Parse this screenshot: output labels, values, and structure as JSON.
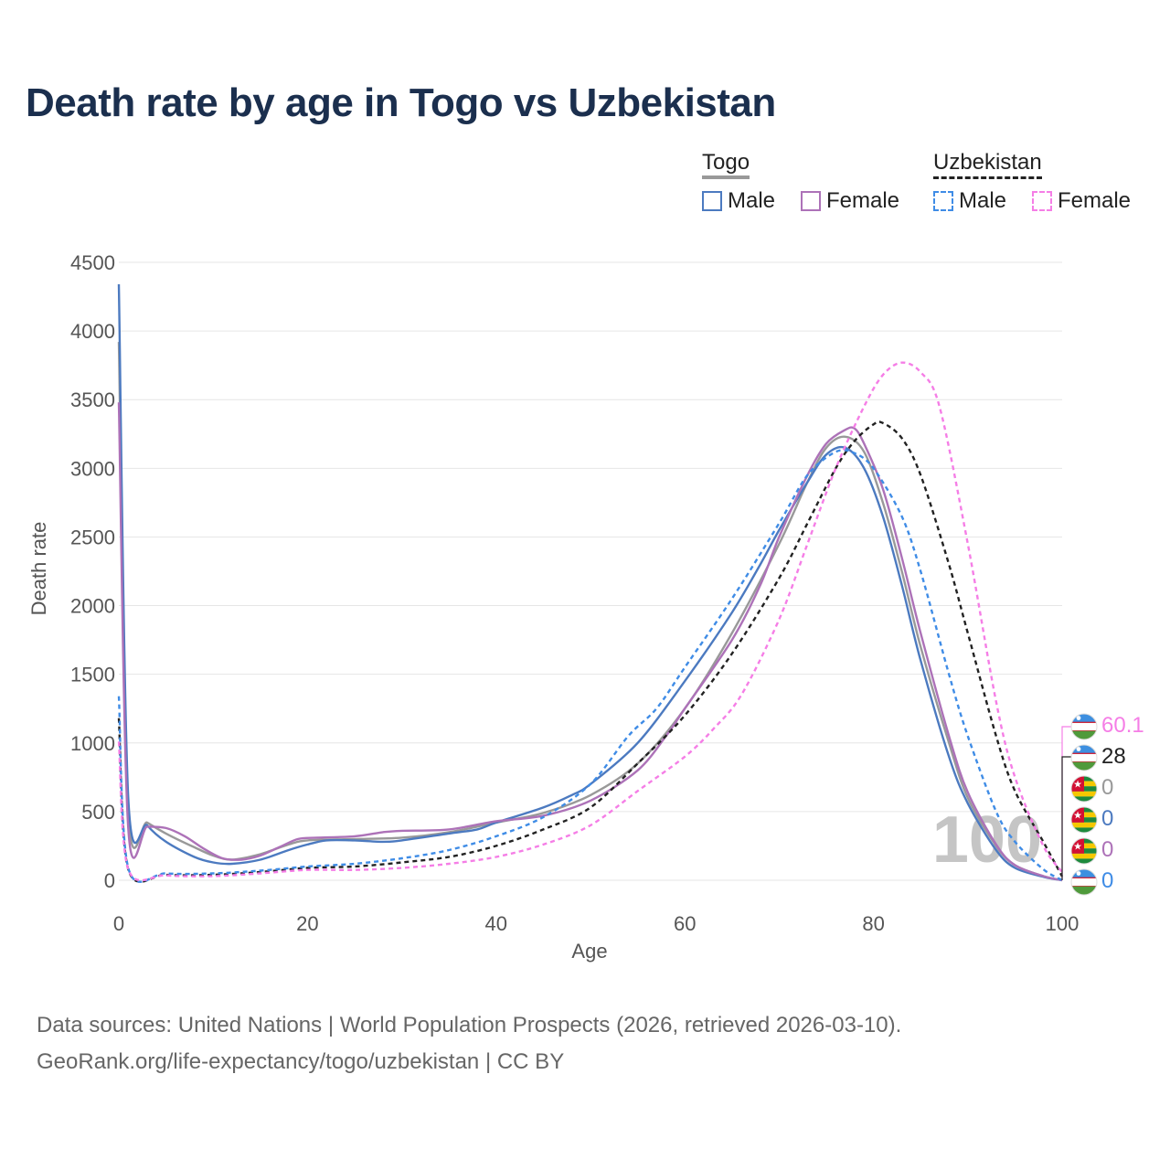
{
  "title": "Death rate by age in Togo vs Uzbekistan",
  "legend": {
    "groups": [
      {
        "name": "Togo",
        "underline_color": "#999999",
        "underline_style": "solid",
        "items": [
          {
            "label": "Male",
            "color": "#4c7ac0",
            "style": "solid"
          },
          {
            "label": "Female",
            "color": "#ad72b8",
            "style": "solid"
          }
        ]
      },
      {
        "name": "Uzbekistan",
        "underline_color": "#222222",
        "underline_style": "dashed",
        "items": [
          {
            "label": "Male",
            "color": "#3f8ce6",
            "style": "dashed"
          },
          {
            "label": "Female",
            "color": "#f57ee6",
            "style": "dashed"
          }
        ]
      }
    ]
  },
  "chart_data": {
    "type": "line",
    "title": "Death rate by age in Togo vs Uzbekistan",
    "xlabel": "Age",
    "ylabel": "Death rate",
    "xlim": [
      0,
      100
    ],
    "ylim": [
      0,
      4500
    ],
    "xticks": [
      "0",
      "20",
      "40",
      "60",
      "80",
      "100"
    ],
    "yticks": [
      "0",
      "500",
      "1000",
      "1500",
      "2000",
      "2500",
      "3000",
      "3500",
      "4000",
      "4500"
    ],
    "grid": true,
    "age_watermark": "100",
    "series": [
      {
        "name": "Togo Total",
        "color": "#999999",
        "dash": "",
        "points": [
          [
            0,
            3920
          ],
          [
            1,
            500
          ],
          [
            3,
            420
          ],
          [
            5,
            340
          ],
          [
            8,
            240
          ],
          [
            10,
            180
          ],
          [
            12,
            150
          ],
          [
            15,
            190
          ],
          [
            18,
            260
          ],
          [
            20,
            290
          ],
          [
            25,
            300
          ],
          [
            30,
            310
          ],
          [
            35,
            350
          ],
          [
            40,
            420
          ],
          [
            45,
            490
          ],
          [
            50,
            620
          ],
          [
            55,
            850
          ],
          [
            60,
            1250
          ],
          [
            65,
            1800
          ],
          [
            70,
            2450
          ],
          [
            73,
            2900
          ],
          [
            75,
            3150
          ],
          [
            77,
            3230
          ],
          [
            79,
            3120
          ],
          [
            81,
            2750
          ],
          [
            83,
            2250
          ],
          [
            85,
            1700
          ],
          [
            88,
            1000
          ],
          [
            90,
            600
          ],
          [
            93,
            250
          ],
          [
            95,
            110
          ],
          [
            98,
            30
          ],
          [
            100,
            0
          ]
        ]
      },
      {
        "name": "Togo Male",
        "color": "#4c7ac0",
        "dash": "",
        "points": [
          [
            0,
            4340
          ],
          [
            1,
            600
          ],
          [
            3,
            400
          ],
          [
            5,
            280
          ],
          [
            8,
            170
          ],
          [
            10,
            130
          ],
          [
            12,
            120
          ],
          [
            15,
            150
          ],
          [
            18,
            220
          ],
          [
            20,
            260
          ],
          [
            22,
            290
          ],
          [
            25,
            290
          ],
          [
            28,
            280
          ],
          [
            30,
            290
          ],
          [
            35,
            340
          ],
          [
            38,
            370
          ],
          [
            40,
            420
          ],
          [
            45,
            530
          ],
          [
            48,
            620
          ],
          [
            50,
            700
          ],
          [
            55,
            1000
          ],
          [
            60,
            1450
          ],
          [
            65,
            1950
          ],
          [
            68,
            2300
          ],
          [
            70,
            2550
          ],
          [
            73,
            2900
          ],
          [
            75,
            3100
          ],
          [
            77,
            3150
          ],
          [
            79,
            3000
          ],
          [
            81,
            2650
          ],
          [
            83,
            2150
          ],
          [
            85,
            1600
          ],
          [
            88,
            900
          ],
          [
            90,
            560
          ],
          [
            93,
            220
          ],
          [
            95,
            90
          ],
          [
            98,
            25
          ],
          [
            100,
            0
          ]
        ]
      },
      {
        "name": "Togo Female",
        "color": "#ad72b8",
        "dash": "",
        "points": [
          [
            0,
            3480
          ],
          [
            1,
            380
          ],
          [
            3,
            390
          ],
          [
            5,
            380
          ],
          [
            7,
            320
          ],
          [
            9,
            230
          ],
          [
            11,
            160
          ],
          [
            13,
            150
          ],
          [
            15,
            180
          ],
          [
            17,
            240
          ],
          [
            19,
            300
          ],
          [
            21,
            310
          ],
          [
            25,
            320
          ],
          [
            28,
            350
          ],
          [
            30,
            360
          ],
          [
            35,
            370
          ],
          [
            40,
            430
          ],
          [
            45,
            470
          ],
          [
            50,
            580
          ],
          [
            55,
            800
          ],
          [
            58,
            1050
          ],
          [
            60,
            1250
          ],
          [
            65,
            1750
          ],
          [
            68,
            2150
          ],
          [
            70,
            2500
          ],
          [
            73,
            2950
          ],
          [
            75,
            3180
          ],
          [
            77,
            3280
          ],
          [
            78,
            3290
          ],
          [
            79,
            3180
          ],
          [
            81,
            2850
          ],
          [
            83,
            2350
          ],
          [
            85,
            1800
          ],
          [
            88,
            1050
          ],
          [
            90,
            640
          ],
          [
            93,
            260
          ],
          [
            95,
            110
          ],
          [
            98,
            30
          ],
          [
            100,
            0
          ]
        ]
      },
      {
        "name": "Uzbekistan Total",
        "color": "#222222",
        "dash": "5,4",
        "points": [
          [
            0,
            1180
          ],
          [
            1,
            80
          ],
          [
            5,
            40
          ],
          [
            10,
            40
          ],
          [
            15,
            60
          ],
          [
            20,
            90
          ],
          [
            25,
            100
          ],
          [
            30,
            130
          ],
          [
            35,
            170
          ],
          [
            40,
            250
          ],
          [
            45,
            370
          ],
          [
            50,
            530
          ],
          [
            55,
            850
          ],
          [
            60,
            1200
          ],
          [
            65,
            1650
          ],
          [
            70,
            2200
          ],
          [
            73,
            2600
          ],
          [
            76,
            3000
          ],
          [
            78,
            3200
          ],
          [
            80,
            3320
          ],
          [
            81,
            3330
          ],
          [
            83,
            3220
          ],
          [
            85,
            2950
          ],
          [
            88,
            2300
          ],
          [
            90,
            1800
          ],
          [
            93,
            1050
          ],
          [
            95,
            650
          ],
          [
            98,
            280
          ],
          [
            100,
            28
          ]
        ]
      },
      {
        "name": "Uzbekistan Male",
        "color": "#3f8ce6",
        "dash": "5,4",
        "points": [
          [
            0,
            1340
          ],
          [
            1,
            90
          ],
          [
            5,
            50
          ],
          [
            10,
            50
          ],
          [
            15,
            70
          ],
          [
            20,
            100
          ],
          [
            25,
            120
          ],
          [
            30,
            160
          ],
          [
            35,
            220
          ],
          [
            40,
            320
          ],
          [
            45,
            460
          ],
          [
            50,
            700
          ],
          [
            54,
            1050
          ],
          [
            57,
            1250
          ],
          [
            60,
            1550
          ],
          [
            65,
            2050
          ],
          [
            70,
            2600
          ],
          [
            73,
            2950
          ],
          [
            76,
            3120
          ],
          [
            78,
            3110
          ],
          [
            80,
            3000
          ],
          [
            83,
            2650
          ],
          [
            85,
            2250
          ],
          [
            88,
            1500
          ],
          [
            90,
            1050
          ],
          [
            93,
            500
          ],
          [
            95,
            280
          ],
          [
            98,
            80
          ],
          [
            100,
            0
          ]
        ]
      },
      {
        "name": "Uzbekistan Female",
        "color": "#f57ee6",
        "dash": "5,4",
        "points": [
          [
            0,
            1010
          ],
          [
            1,
            80
          ],
          [
            5,
            35
          ],
          [
            10,
            30
          ],
          [
            15,
            50
          ],
          [
            20,
            75
          ],
          [
            25,
            75
          ],
          [
            30,
            90
          ],
          [
            35,
            120
          ],
          [
            40,
            170
          ],
          [
            45,
            260
          ],
          [
            50,
            400
          ],
          [
            55,
            650
          ],
          [
            60,
            900
          ],
          [
            63,
            1100
          ],
          [
            66,
            1350
          ],
          [
            70,
            1900
          ],
          [
            73,
            2450
          ],
          [
            76,
            3000
          ],
          [
            79,
            3450
          ],
          [
            81,
            3680
          ],
          [
            83,
            3770
          ],
          [
            85,
            3700
          ],
          [
            87,
            3450
          ],
          [
            90,
            2450
          ],
          [
            93,
            1300
          ],
          [
            95,
            750
          ],
          [
            98,
            250
          ],
          [
            100,
            60.1
          ]
        ]
      }
    ],
    "end_labels": [
      {
        "text": "60.1",
        "color": "#f57ee6",
        "flag": "uzbekistan"
      },
      {
        "text": "28",
        "color": "#222222",
        "flag": "uzbekistan"
      },
      {
        "text": "0",
        "color": "#999999",
        "flag": "togo"
      },
      {
        "text": "0",
        "color": "#4c7ac0",
        "flag": "togo"
      },
      {
        "text": "0",
        "color": "#ad72b8",
        "flag": "togo"
      },
      {
        "text": "0",
        "color": "#3f8ce6",
        "flag": "uzbekistan"
      }
    ]
  },
  "source": {
    "line1": "Data sources: United Nations | World Population Prospects (2026, retrieved 2026-03-10).",
    "line2": "GeoRank.org/life-expectancy/togo/uzbekistan | CC BY"
  }
}
